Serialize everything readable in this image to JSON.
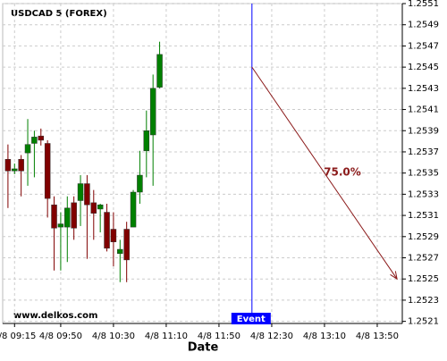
{
  "chart_data": {
    "type": "candlestick",
    "title": "USDCAD 5 (FOREX)",
    "xlabel": "Date",
    "watermark": "www.delkos.com",
    "x": [
      "4/8 09:10",
      "4/8 09:15",
      "4/8 09:20",
      "4/8 09:25",
      "4/8 09:30",
      "4/8 09:35",
      "4/8 09:40",
      "4/8 09:45",
      "4/8 09:50",
      "4/8 09:55",
      "4/8 10:00",
      "4/8 10:05",
      "4/8 10:10",
      "4/8 10:15",
      "4/8 10:20",
      "4/8 10:25",
      "4/8 10:30",
      "4/8 10:35",
      "4/8 10:40",
      "4/8 10:45",
      "4/8 10:50",
      "4/8 10:55",
      "4/8 11:00",
      "4/8 11:05"
    ],
    "open": [
      1.25363,
      1.25352,
      1.25363,
      1.25369,
      1.25378,
      1.25385,
      1.25378,
      1.2532,
      1.25299,
      1.25299,
      1.25322,
      1.25324,
      1.2534,
      1.25322,
      1.25316,
      1.25313,
      1.25297,
      1.25274,
      1.25297,
      1.25299,
      1.25332,
      1.25371,
      1.25386,
      1.25431
    ],
    "high": [
      1.25377,
      1.25359,
      1.25367,
      1.25401,
      1.2539,
      1.25392,
      1.25381,
      1.25328,
      1.25313,
      1.25328,
      1.25328,
      1.25348,
      1.25348,
      1.25334,
      1.25321,
      1.25321,
      1.25313,
      1.25287,
      1.25304,
      1.25334,
      1.25371,
      1.25409,
      1.25443,
      1.25474
    ],
    "low": [
      1.25317,
      1.25349,
      1.25328,
      1.25338,
      1.25346,
      1.25376,
      1.25308,
      1.25258,
      1.25258,
      1.25266,
      1.25287,
      1.253,
      1.25269,
      1.25287,
      1.25294,
      1.25276,
      1.25262,
      1.25247,
      1.25247,
      1.25299,
      1.25321,
      1.25346,
      1.25338,
      1.2543
    ],
    "close": [
      1.25352,
      1.25354,
      1.25352,
      1.25377,
      1.25384,
      1.25381,
      1.25326,
      1.25298,
      1.25302,
      1.25317,
      1.25298,
      1.2534,
      1.2532,
      1.25312,
      1.2532,
      1.25279,
      1.25285,
      1.25278,
      1.25268,
      1.25332,
      1.25348,
      1.2539,
      1.2543,
      1.25462
    ],
    "up_color": "#008000",
    "down_color": "#800000",
    "xlim": [
      "4/8 09:06",
      "4/8 14:09"
    ],
    "xticks": [
      "4/8 09:15",
      "4/8 09:50",
      "4/8 10:30",
      "4/8 11:10",
      "4/8 11:50",
      "4/8 12:30",
      "4/8 13:10",
      "4/8 13:50"
    ],
    "ylim": [
      1.25208,
      1.2551
    ],
    "yticks": [
      1.2521,
      1.2523,
      1.2525,
      1.2527,
      1.2529,
      1.2531,
      1.2533,
      1.2535,
      1.2537,
      1.2539,
      1.2541,
      1.2543,
      1.2545,
      1.2547,
      1.2549,
      1.2551
    ],
    "grid": true,
    "event": {
      "x": "4/8 12:15",
      "label": "Event",
      "color": "#0000ff"
    },
    "forecast": {
      "x": [
        "4/8 12:15",
        "4/8 14:05"
      ],
      "y": [
        1.2545,
        1.2525
      ],
      "label": "75.0%",
      "color": "#8b1a1a"
    }
  }
}
